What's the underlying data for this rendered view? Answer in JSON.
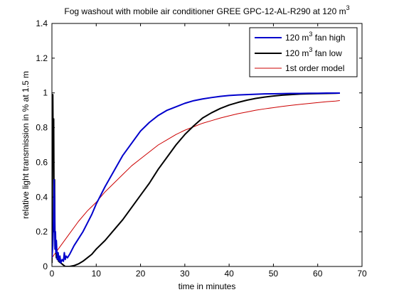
{
  "chart_data": {
    "type": "line",
    "title": {
      "text": "Fog washout with mobile air conditioner GREE GPC-12-AL-R290 at 120 m",
      "sup": "3"
    },
    "xlabel": "time in minutes",
    "ylabel": "relative light transmission in % at 1.5 m",
    "xlim": [
      0,
      70
    ],
    "ylim": [
      0,
      1.4
    ],
    "xticks": [
      0,
      10,
      20,
      30,
      40,
      50,
      60,
      70
    ],
    "yticks": [
      0,
      0.2,
      0.4,
      0.6,
      0.8,
      1,
      1.2,
      1.4
    ],
    "xtick_labels": [
      "0",
      "10",
      "20",
      "30",
      "40",
      "50",
      "60",
      "70"
    ],
    "ytick_labels": [
      "0",
      "0.2",
      "0.4",
      "0.6",
      "0.8",
      "1",
      "1.2",
      "1.4"
    ],
    "grid": false,
    "legend_position": "top-right",
    "series": [
      {
        "name": "120 m",
        "name_sup": "3",
        "name_suffix": " fan high",
        "color": "#0000cc",
        "line_width": 2,
        "x": [
          0,
          0.2,
          0.4,
          0.5,
          0.6,
          0.7,
          0.8,
          0.9,
          1.0,
          1.2,
          1.4,
          1.6,
          1.8,
          2.0,
          2.3,
          2.6,
          2.8,
          3.0,
          3.2,
          3.5,
          4,
          5,
          6,
          7,
          8,
          9,
          10,
          12,
          14,
          16,
          18,
          20,
          22,
          24,
          26,
          28,
          30,
          32,
          34,
          36,
          38,
          40,
          42,
          44,
          46,
          48,
          50,
          52,
          54,
          56,
          58,
          60,
          62,
          64,
          65
        ],
        "y": [
          0.05,
          0.12,
          0.3,
          0.5,
          0.38,
          0.1,
          0.2,
          0.08,
          0.15,
          0.04,
          0.08,
          0.03,
          0.06,
          0.02,
          0.04,
          0.03,
          0.08,
          0.04,
          0.06,
          0.05,
          0.07,
          0.12,
          0.16,
          0.2,
          0.25,
          0.3,
          0.36,
          0.46,
          0.55,
          0.64,
          0.71,
          0.78,
          0.83,
          0.87,
          0.9,
          0.92,
          0.94,
          0.955,
          0.965,
          0.973,
          0.98,
          0.985,
          0.988,
          0.99,
          0.992,
          0.994,
          0.995,
          0.996,
          0.997,
          0.997,
          0.998,
          0.998,
          0.999,
          0.999,
          0.999
        ]
      },
      {
        "name": "120 m",
        "name_sup": "3",
        "name_suffix": " fan low",
        "color": "#000000",
        "line_width": 2,
        "x": [
          0,
          0.2,
          0.3,
          0.4,
          0.5,
          0.6,
          0.7,
          0.8,
          1.0,
          1.2,
          1.5,
          2.0,
          2.5,
          3.0,
          3.5,
          4,
          5,
          6,
          7,
          8,
          9,
          10,
          12,
          14,
          16,
          18,
          20,
          22,
          24,
          26,
          28,
          30,
          32,
          34,
          36,
          38,
          40,
          42,
          44,
          46,
          48,
          50,
          52,
          54,
          56,
          58,
          60,
          62,
          64,
          65
        ],
        "y": [
          0.02,
          0.99,
          0.6,
          0.85,
          0.2,
          0.5,
          0.1,
          0.15,
          0.05,
          0.08,
          0.03,
          0.02,
          0.01,
          0.0,
          0.0,
          0.0,
          0.005,
          0.015,
          0.03,
          0.05,
          0.07,
          0.1,
          0.15,
          0.21,
          0.27,
          0.34,
          0.41,
          0.48,
          0.56,
          0.63,
          0.7,
          0.76,
          0.81,
          0.855,
          0.885,
          0.91,
          0.93,
          0.945,
          0.958,
          0.968,
          0.976,
          0.982,
          0.987,
          0.99,
          0.993,
          0.995,
          0.996,
          0.997,
          0.998,
          0.999
        ]
      },
      {
        "name": "1st order model",
        "name_sup": "",
        "name_suffix": "",
        "color": "#cc0000",
        "line_width": 1,
        "x": [
          0,
          2,
          4,
          6,
          8,
          10,
          12,
          14,
          16,
          18,
          20,
          22,
          24,
          26,
          28,
          30,
          32,
          34,
          36,
          38,
          40,
          42,
          44,
          46,
          48,
          50,
          52,
          54,
          56,
          58,
          60,
          62,
          64,
          65
        ],
        "y": [
          0.05,
          0.12,
          0.19,
          0.26,
          0.32,
          0.37,
          0.43,
          0.48,
          0.53,
          0.58,
          0.62,
          0.66,
          0.7,
          0.73,
          0.76,
          0.785,
          0.805,
          0.825,
          0.84,
          0.855,
          0.868,
          0.88,
          0.89,
          0.9,
          0.908,
          0.915,
          0.922,
          0.928,
          0.934,
          0.939,
          0.944,
          0.949,
          0.953,
          0.956
        ]
      }
    ]
  }
}
